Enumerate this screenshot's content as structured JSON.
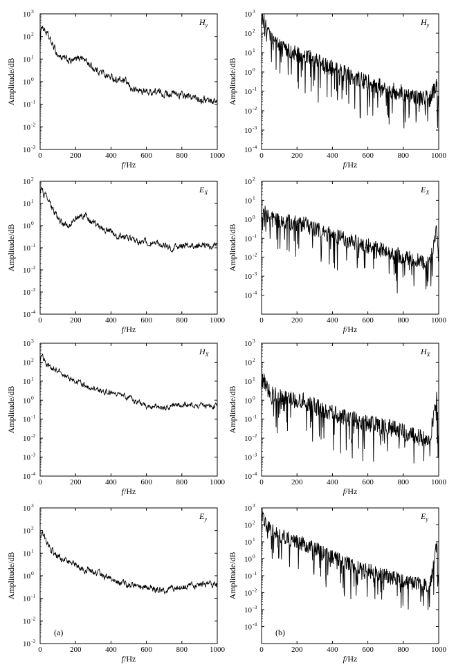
{
  "figure": {
    "background": "#ffffff",
    "line_color": "#000000"
  },
  "chart_data": [
    {
      "type": "line",
      "label": "Hy",
      "label_main": "H",
      "label_sub": "y",
      "column": "a",
      "row": 0,
      "xlabel_italic": "f",
      "xlabel_unit": "/Hz",
      "ylabel": "Amplitude/dB",
      "xlim": [
        0,
        1000
      ],
      "xticks": [
        0,
        200,
        400,
        600,
        800,
        1000
      ],
      "yscale": "log",
      "ylim_exp": [
        -3,
        3
      ],
      "yticks_exp": [
        -3,
        -2,
        -1,
        0,
        1,
        2,
        3
      ],
      "ytick_base": "10",
      "series": [
        {
          "x": [
            0,
            10,
            20,
            40,
            60,
            80,
            100,
            120,
            150,
            180,
            200,
            230,
            260,
            300,
            350,
            400,
            440,
            480,
            520,
            560,
            600,
            650,
            700,
            750,
            800,
            850,
            900,
            950,
            1000
          ],
          "y": [
            60,
            350,
            220,
            120,
            60,
            30,
            15,
            12,
            9,
            8,
            9,
            13,
            8,
            4,
            2.5,
            1.5,
            1.2,
            1.0,
            0.45,
            0.4,
            0.35,
            0.35,
            0.3,
            0.3,
            0.25,
            0.2,
            0.18,
            0.15,
            0.13
          ]
        }
      ],
      "noise": 0.22
    },
    {
      "type": "line",
      "label": "Hy",
      "label_main": "H",
      "label_sub": "y",
      "column": "b",
      "row": 0,
      "xlabel_italic": "f",
      "xlabel_unit": "/Hz",
      "ylabel": "Amplitude/dB",
      "xlim": [
        0,
        1000
      ],
      "xticks": [
        0,
        200,
        400,
        600,
        800,
        1000
      ],
      "yscale": "log",
      "ylim_exp": [
        -4,
        3
      ],
      "yticks_exp": [
        -4,
        -3,
        -2,
        -1,
        0,
        1,
        2,
        3
      ],
      "ytick_base": "10",
      "series": [
        {
          "x": [
            0,
            10,
            30,
            60,
            100,
            150,
            200,
            250,
            300,
            350,
            400,
            450,
            500,
            550,
            600,
            650,
            700,
            750,
            800,
            850,
            900,
            950,
            990,
            1000
          ],
          "y": [
            300,
            500,
            120,
            40,
            20,
            12,
            8,
            6,
            4,
            2.5,
            1.5,
            1.0,
            0.6,
            0.4,
            0.3,
            0.2,
            0.15,
            0.1,
            0.08,
            0.06,
            0.05,
            0.04,
            0.2,
            0.03
          ]
        }
      ],
      "noise": 0.75
    },
    {
      "type": "line",
      "label": "EX",
      "label_main": "E",
      "label_sub": "X",
      "column": "a",
      "row": 1,
      "xlabel_italic": "f",
      "xlabel_unit": "/Hz",
      "ylabel": "Amplitude/dB",
      "xlim": [
        0,
        1000
      ],
      "xticks": [
        0,
        200,
        400,
        600,
        800,
        1000
      ],
      "yscale": "log",
      "ylim_exp": [
        -4,
        2
      ],
      "yticks_exp": [
        -4,
        -3,
        -2,
        -1,
        0,
        1,
        2
      ],
      "ytick_base": "10",
      "series": [
        {
          "x": [
            0,
            10,
            20,
            40,
            60,
            80,
            100,
            130,
            160,
            200,
            230,
            260,
            300,
            350,
            400,
            450,
            500,
            550,
            600,
            650,
            700,
            750,
            800,
            850,
            900,
            950,
            1000
          ],
          "y": [
            30,
            50,
            30,
            15,
            8,
            4,
            2,
            1.2,
            1.0,
            2,
            3,
            2.5,
            1.5,
            0.8,
            0.5,
            0.35,
            0.25,
            0.2,
            0.18,
            0.15,
            0.13,
            0.1,
            0.12,
            0.12,
            0.12,
            0.12,
            0.12
          ]
        }
      ],
      "noise": 0.2
    },
    {
      "type": "line",
      "label": "EX",
      "label_main": "E",
      "label_sub": "X",
      "column": "b",
      "row": 1,
      "xlabel_italic": "f",
      "xlabel_unit": "/Hz",
      "ylabel": "Amplitude/dB",
      "xlim": [
        0,
        1000
      ],
      "xticks": [
        0,
        200,
        400,
        600,
        800,
        1000
      ],
      "yscale": "log",
      "ylim_exp": [
        -5,
        2
      ],
      "yticks_exp": [
        -4,
        -3,
        -2,
        -1,
        0,
        1,
        2
      ],
      "ytick_base": "10",
      "series": [
        {
          "x": [
            0,
            10,
            30,
            60,
            100,
            150,
            200,
            250,
            300,
            350,
            400,
            450,
            500,
            550,
            600,
            650,
            700,
            750,
            800,
            850,
            900,
            950,
            990,
            1000
          ],
          "y": [
            1.5,
            3,
            1.5,
            1.0,
            0.8,
            0.7,
            0.6,
            0.5,
            0.3,
            0.2,
            0.15,
            0.1,
            0.07,
            0.05,
            0.04,
            0.03,
            0.02,
            0.015,
            0.01,
            0.008,
            0.006,
            0.005,
            0.3,
            0.004
          ]
        }
      ],
      "noise": 0.7
    },
    {
      "type": "line",
      "label": "HX",
      "label_main": "H",
      "label_sub": "X",
      "column": "a",
      "row": 2,
      "xlabel_italic": "f",
      "xlabel_unit": "/Hz",
      "ylabel": "Amplitude/dB",
      "xlim": [
        0,
        1000
      ],
      "xticks": [
        0,
        200,
        400,
        600,
        800,
        1000
      ],
      "yscale": "log",
      "ylim_exp": [
        -4,
        3
      ],
      "yticks_exp": [
        -4,
        -3,
        -2,
        -1,
        0,
        1,
        2,
        3
      ],
      "ytick_base": "10",
      "series": [
        {
          "x": [
            0,
            10,
            20,
            40,
            60,
            80,
            100,
            130,
            160,
            200,
            250,
            300,
            350,
            400,
            450,
            500,
            550,
            600,
            650,
            700,
            750,
            800,
            850,
            900,
            950,
            1000
          ],
          "y": [
            100,
            300,
            150,
            80,
            50,
            40,
            35,
            25,
            15,
            10,
            6,
            4,
            3,
            2.5,
            2,
            1.3,
            0.8,
            0.5,
            0.4,
            0.4,
            0.5,
            0.6,
            0.5,
            0.5,
            0.5,
            0.5
          ]
        }
      ],
      "noise": 0.2
    },
    {
      "type": "line",
      "label": "HX",
      "label_main": "H",
      "label_sub": "X",
      "column": "b",
      "row": 2,
      "xlabel_italic": "f",
      "xlabel_unit": "/Hz",
      "ylabel": "Amplitude/dB",
      "xlim": [
        0,
        1000
      ],
      "xticks": [
        0,
        200,
        400,
        600,
        800,
        1000
      ],
      "yscale": "log",
      "ylim_exp": [
        -4,
        3
      ],
      "yticks_exp": [
        -4,
        -3,
        -2,
        -1,
        0,
        1,
        2,
        3
      ],
      "ytick_base": "10",
      "series": [
        {
          "x": [
            0,
            10,
            30,
            60,
            100,
            150,
            200,
            250,
            300,
            350,
            400,
            450,
            500,
            550,
            600,
            650,
            700,
            750,
            800,
            850,
            900,
            950,
            990,
            1000
          ],
          "y": [
            5,
            15,
            4,
            2,
            1.5,
            1.2,
            1.0,
            0.8,
            0.5,
            0.3,
            0.2,
            0.15,
            0.1,
            0.08,
            0.06,
            0.05,
            0.04,
            0.03,
            0.02,
            0.015,
            0.01,
            0.008,
            2,
            0.005
          ]
        }
      ],
      "noise": 0.75
    },
    {
      "type": "line",
      "label": "Ey",
      "label_main": "E",
      "label_sub": "y",
      "column": "a",
      "row": 3,
      "xlabel_italic": "f",
      "xlabel_unit": "/Hz",
      "ylabel": "Amplitude/dB",
      "panel_letter": "(a)",
      "xlim": [
        0,
        1000
      ],
      "xticks": [
        0,
        200,
        400,
        600,
        800,
        1000
      ],
      "yscale": "log",
      "ylim_exp": [
        -3,
        3
      ],
      "yticks_exp": [
        -3,
        -2,
        -1,
        0,
        1,
        2,
        3
      ],
      "ytick_base": "10",
      "series": [
        {
          "x": [
            0,
            10,
            20,
            40,
            60,
            80,
            100,
            130,
            160,
            200,
            250,
            300,
            350,
            400,
            450,
            500,
            550,
            600,
            650,
            700,
            750,
            800,
            850,
            900,
            950,
            1000
          ],
          "y": [
            60,
            100,
            60,
            30,
            15,
            10,
            7,
            5,
            4,
            3,
            2,
            1.5,
            1.0,
            0.7,
            0.5,
            0.4,
            0.35,
            0.3,
            0.25,
            0.25,
            0.3,
            0.3,
            0.35,
            0.4,
            0.4,
            0.4
          ]
        }
      ],
      "noise": 0.2
    },
    {
      "type": "line",
      "label": "Ey",
      "label_main": "E",
      "label_sub": "y",
      "column": "b",
      "row": 3,
      "xlabel_italic": "f",
      "xlabel_unit": "/Hz",
      "ylabel": "Amplitude/dB",
      "panel_letter": "(b)",
      "xlim": [
        0,
        1000
      ],
      "xticks": [
        0,
        200,
        400,
        600,
        800,
        1000
      ],
      "yscale": "log",
      "ylim_exp": [
        -5,
        3
      ],
      "yticks_exp": [
        -4,
        -3,
        -2,
        -1,
        0,
        1,
        2,
        3
      ],
      "ytick_base": "10",
      "series": [
        {
          "x": [
            0,
            10,
            30,
            60,
            100,
            150,
            200,
            250,
            300,
            350,
            400,
            450,
            500,
            550,
            600,
            650,
            700,
            750,
            800,
            850,
            900,
            950,
            990,
            1000
          ],
          "y": [
            200,
            400,
            80,
            40,
            25,
            15,
            10,
            6,
            4,
            2,
            1.2,
            0.8,
            0.5,
            0.3,
            0.2,
            0.15,
            0.1,
            0.07,
            0.05,
            0.04,
            0.03,
            0.02,
            10,
            0.02
          ]
        }
      ],
      "noise": 0.75
    }
  ]
}
